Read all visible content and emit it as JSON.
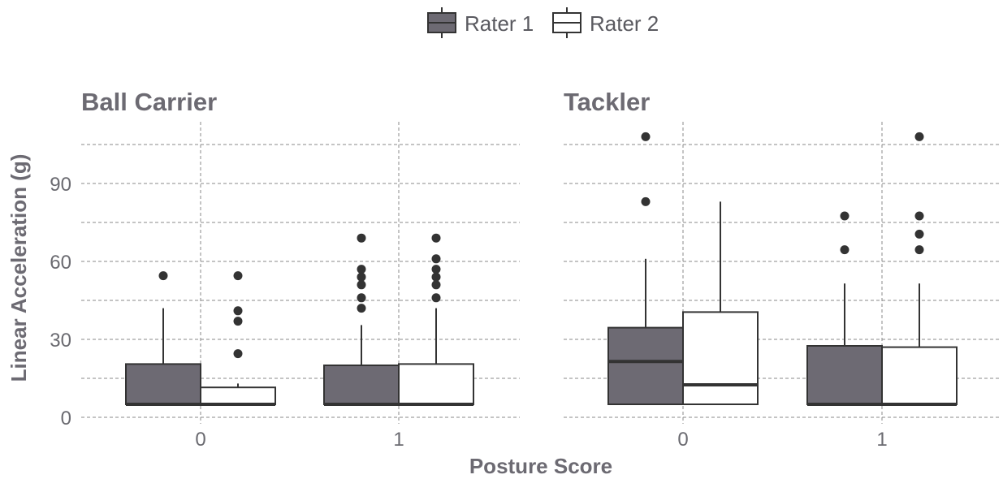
{
  "chart_data": {
    "type": "box",
    "xlabel": "Posture Score",
    "ylabel": "Linear Acceleration (g)",
    "ylim": [
      0,
      112
    ],
    "y_ticks": [
      0,
      30,
      60,
      90
    ],
    "categories": [
      "0",
      "1"
    ],
    "legend": {
      "position": "top",
      "entries": [
        {
          "name": "Rater 1",
          "fill": "#6d6a73"
        },
        {
          "name": "Rater 2",
          "fill": "#ffffff"
        }
      ]
    },
    "grid": true,
    "facets": [
      {
        "title": "Ball Carrier",
        "boxes": [
          {
            "category": "0",
            "series": "Rater 1",
            "whisker_low": 5,
            "q1": 5,
            "median": 5,
            "q3": 20.5,
            "whisker_high": 42,
            "outliers": [
              54.5
            ]
          },
          {
            "category": "0",
            "series": "Rater 2",
            "whisker_low": 5,
            "q1": 5,
            "median": 5,
            "q3": 11.5,
            "whisker_high": 13,
            "outliers": [
              24.5,
              37,
              41,
              54.5
            ]
          },
          {
            "category": "1",
            "series": "Rater 1",
            "whisker_low": 5,
            "q1": 5,
            "median": 5,
            "q3": 20,
            "whisker_high": 35.5,
            "outliers": [
              42,
              46,
              51,
              54,
              57,
              69
            ]
          },
          {
            "category": "1",
            "series": "Rater 2",
            "whisker_low": 5,
            "q1": 5,
            "median": 5,
            "q3": 20.5,
            "whisker_high": 42,
            "outliers": [
              46,
              51,
              54,
              57,
              61,
              69
            ]
          }
        ]
      },
      {
        "title": "Tackler",
        "boxes": [
          {
            "category": "0",
            "series": "Rater 1",
            "whisker_low": 5,
            "q1": 5,
            "median": 21.5,
            "q3": 34.5,
            "whisker_high": 61,
            "outliers": [
              83,
              108
            ]
          },
          {
            "category": "0",
            "series": "Rater 2",
            "whisker_low": 5,
            "q1": 5,
            "median": 12.5,
            "q3": 40.5,
            "whisker_high": 83,
            "outliers": []
          },
          {
            "category": "1",
            "series": "Rater 1",
            "whisker_low": 5,
            "q1": 5,
            "median": 5,
            "q3": 27.5,
            "whisker_high": 51.5,
            "outliers": [
              64.5,
              77.5
            ]
          },
          {
            "category": "1",
            "series": "Rater 2",
            "whisker_low": 5,
            "q1": 5,
            "median": 5,
            "q3": 27,
            "whisker_high": 51.5,
            "outliers": [
              64.5,
              70.5,
              77.5,
              108
            ]
          }
        ]
      }
    ]
  }
}
